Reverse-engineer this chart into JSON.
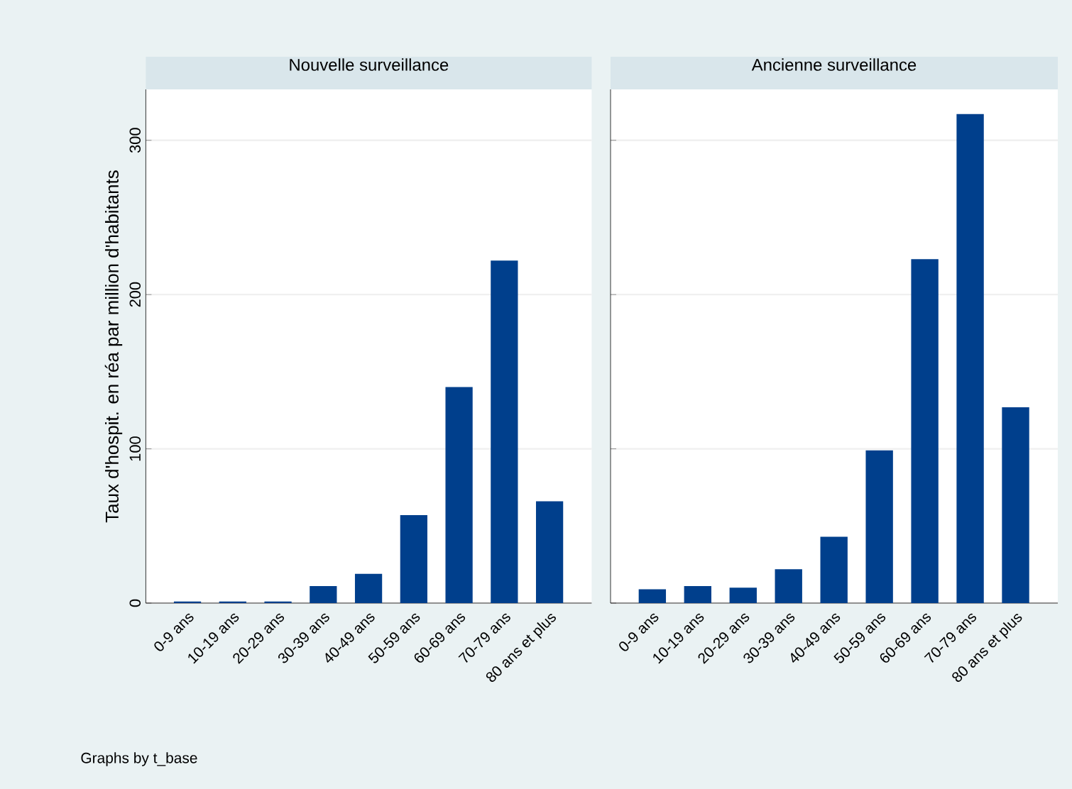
{
  "chart_data": [
    {
      "type": "bar",
      "title": "Nouvelle surveillance",
      "ylabel": "Taux d'hospit. en réa par million d'habitants",
      "categories": [
        "0-9 ans",
        "10-19 ans",
        "20-29 ans",
        "30-39 ans",
        "40-49 ans",
        "50-59 ans",
        "60-69 ans",
        "70-79 ans",
        "80 ans et plus"
      ],
      "values": [
        1,
        1,
        1,
        11,
        19,
        57,
        140,
        222,
        66
      ],
      "color": "#003f8c",
      "ylim": [
        0,
        333
      ],
      "yticks": [
        0,
        100,
        200,
        300
      ],
      "grid": "y",
      "annotations": [
        "Graphs by t_base"
      ]
    },
    {
      "type": "bar",
      "title": "Ancienne surveillance",
      "categories": [
        "0-9 ans",
        "10-19 ans",
        "20-29 ans",
        "30-39 ans",
        "40-49 ans",
        "50-59 ans",
        "60-69 ans",
        "70-79 ans",
        "80 ans et plus"
      ],
      "values": [
        9,
        11,
        10,
        22,
        43,
        99,
        223,
        317,
        127
      ],
      "color": "#003f8c",
      "ylim": [
        0,
        333
      ],
      "yticks": [
        0,
        100,
        200,
        300
      ],
      "grid": "y",
      "tick_labels": "x"
    }
  ]
}
